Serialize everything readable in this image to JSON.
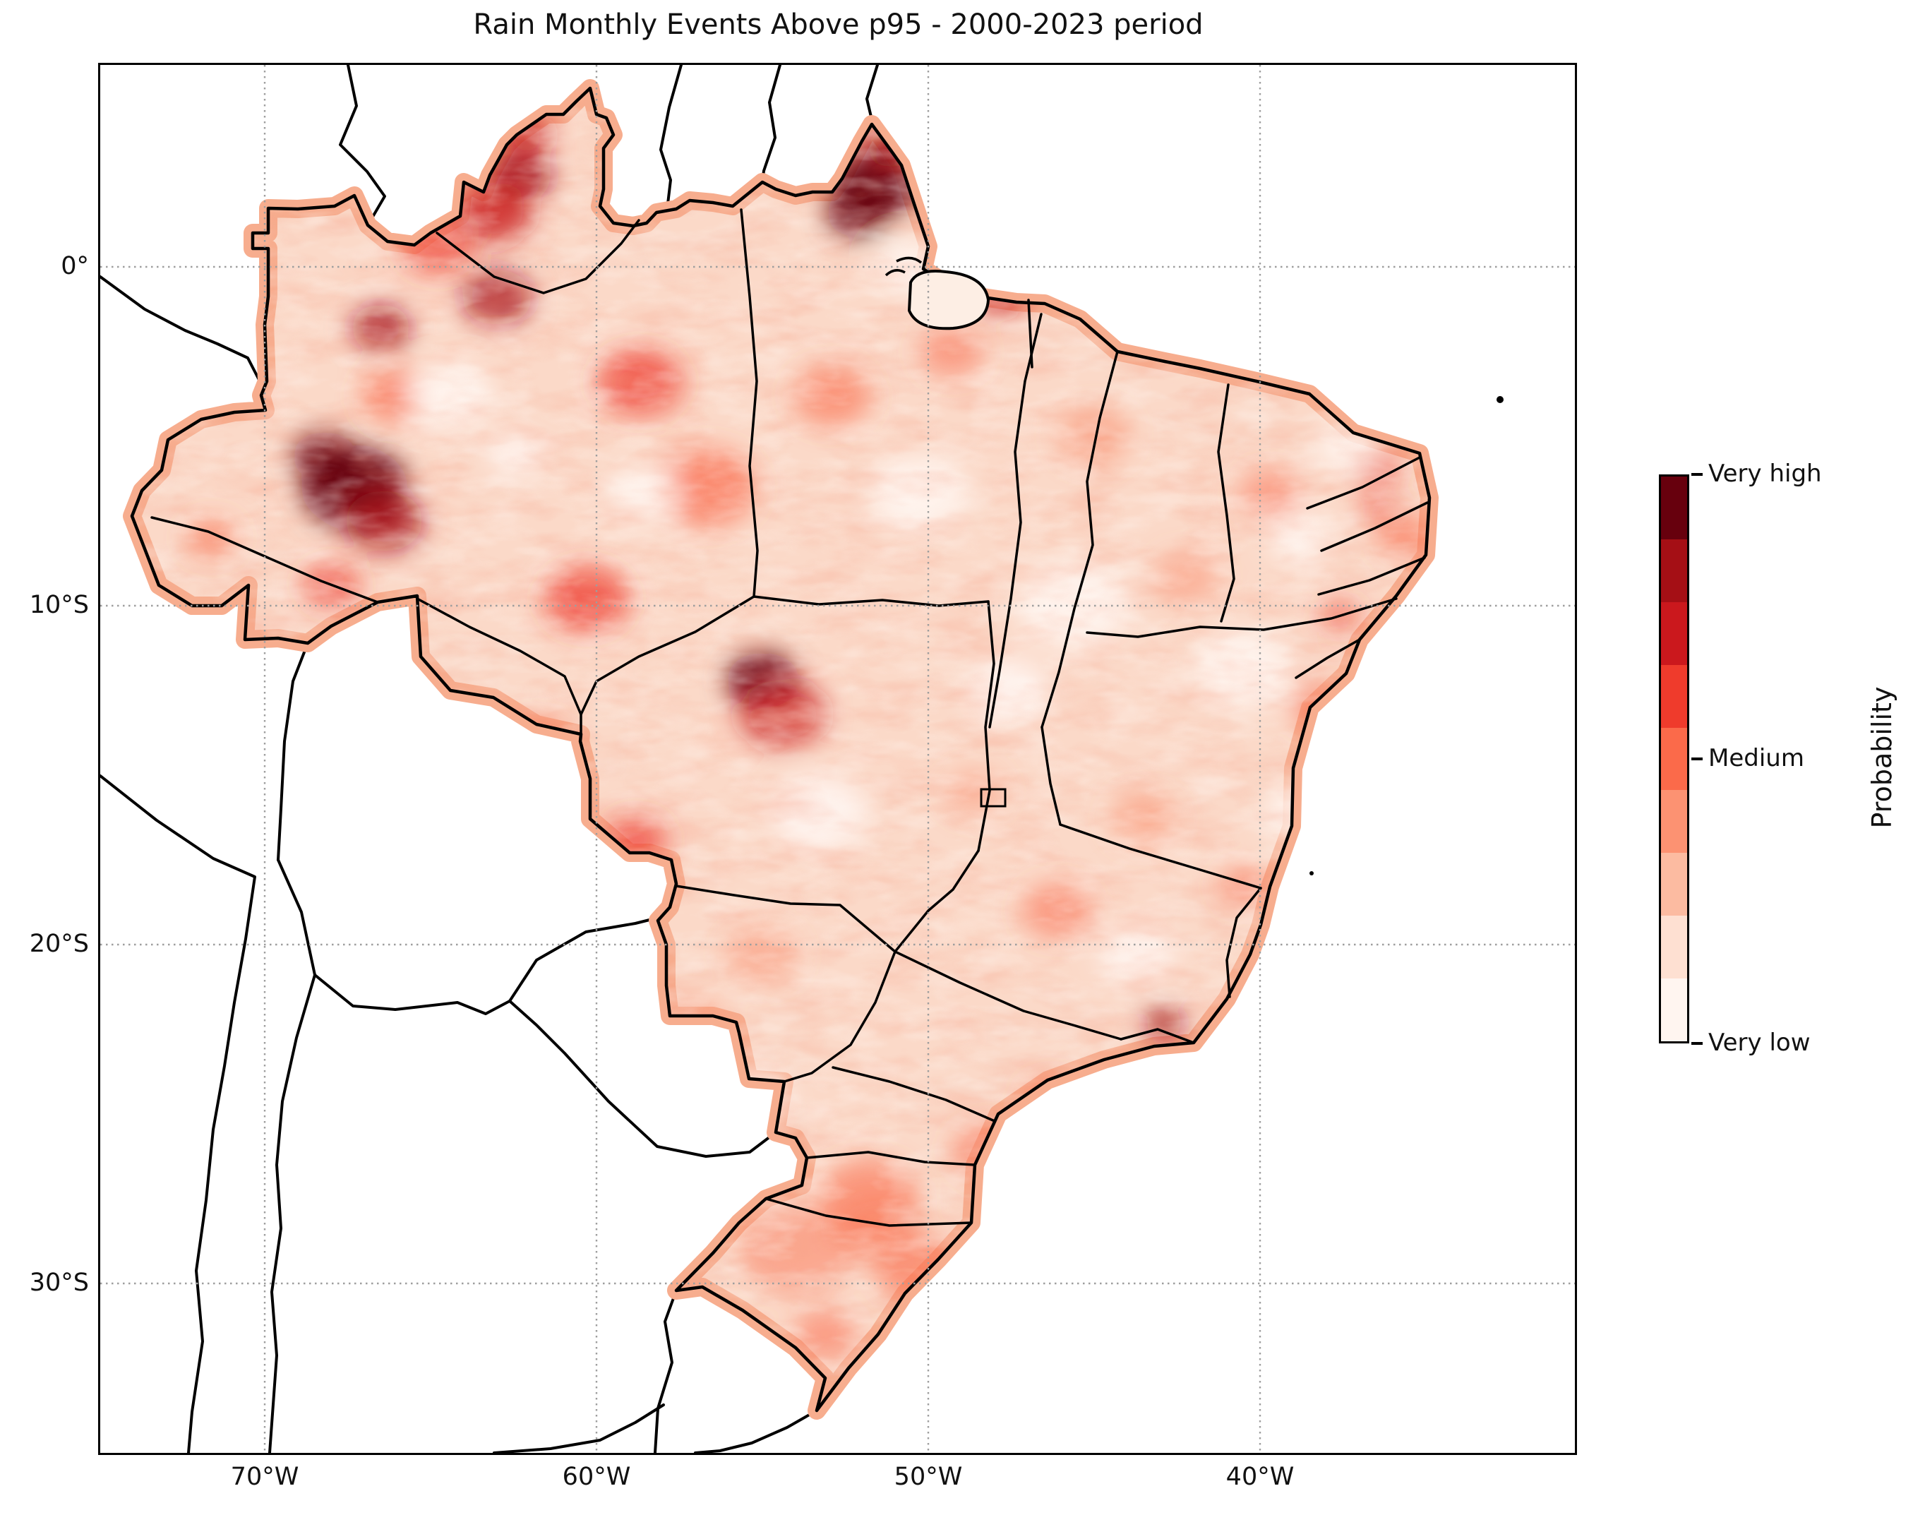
{
  "title": "Rain Monthly Events Above p95 - 2000-2023 period",
  "axes": {
    "x_ticks": [
      {
        "label": "70°W",
        "lon": -70
      },
      {
        "label": "60°W",
        "lon": -60
      },
      {
        "label": "50°W",
        "lon": -50
      },
      {
        "label": "40°W",
        "lon": -40
      }
    ],
    "y_ticks": [
      {
        "label": "0°",
        "lat": 0
      },
      {
        "label": "10°S",
        "lat": -10
      },
      {
        "label": "20°S",
        "lat": -20
      },
      {
        "label": "30°S",
        "lat": -30
      }
    ]
  },
  "colorbar": {
    "title": "Probability",
    "ticks": [
      {
        "label": "Very high",
        "pos": 1.0
      },
      {
        "label": "Medium",
        "pos": 0.5
      },
      {
        "label": "Very low",
        "pos": 0.0
      }
    ],
    "palette_low_to_high": [
      "#fff5f0",
      "#fee0d2",
      "#fcbba1",
      "#fc9272",
      "#fb6a4a",
      "#ef3b2c",
      "#cb181d",
      "#a50f15",
      "#67000d"
    ]
  },
  "chart_data": {
    "type": "heatmap",
    "title": "Rain Monthly Events Above p95 - 2000-2023 period",
    "region": "Brazil",
    "legend_label": "Probability",
    "legend_levels": [
      "Very low",
      "Medium",
      "Very high"
    ],
    "gridlines": {
      "lons": [
        -70,
        -60,
        -50,
        -40
      ],
      "lats": [
        0,
        -10,
        -20,
        -30
      ]
    },
    "base_level": 2,
    "hotspots": [
      {
        "lon": -67.3,
        "lat": -6.5,
        "r": 75,
        "level": 8,
        "o": 0.95
      },
      {
        "lon": -68.2,
        "lat": -5.6,
        "r": 45,
        "level": 8,
        "o": 0.9
      },
      {
        "lon": -66.4,
        "lat": -7.5,
        "r": 55,
        "level": 7,
        "o": 0.85
      },
      {
        "lon": -66.5,
        "lat": -1.8,
        "r": 42,
        "level": 7,
        "o": 0.8
      },
      {
        "lon": -62.3,
        "lat": 2.7,
        "r": 45,
        "level": 7,
        "o": 0.9
      },
      {
        "lon": -63.1,
        "lat": 1.6,
        "r": 55,
        "level": 6,
        "o": 0.8
      },
      {
        "lon": -62.1,
        "lat": 3.9,
        "r": 35,
        "level": 6,
        "o": 0.8
      },
      {
        "lon": -63.0,
        "lat": -0.9,
        "r": 50,
        "level": 7,
        "o": 0.8
      },
      {
        "lon": -51.6,
        "lat": 2.4,
        "r": 60,
        "level": 8,
        "o": 0.95
      },
      {
        "lon": -52.1,
        "lat": 1.6,
        "r": 45,
        "level": 8,
        "o": 0.9
      },
      {
        "lon": -51.1,
        "lat": 3.5,
        "r": 35,
        "level": 7,
        "o": 0.9
      },
      {
        "lon": -55.0,
        "lat": -12.2,
        "r": 50,
        "level": 8,
        "o": 0.95
      },
      {
        "lon": -54.4,
        "lat": -13.2,
        "r": 62,
        "level": 6,
        "o": 0.7
      },
      {
        "lon": -47.8,
        "lat": -0.8,
        "r": 36,
        "level": 6,
        "o": 0.8
      },
      {
        "lon": -42.9,
        "lat": -22.3,
        "r": 28,
        "level": 7,
        "o": 0.85
      },
      {
        "lon": -58.7,
        "lat": -3.4,
        "r": 60,
        "level": 5,
        "o": 0.75
      },
      {
        "lon": -56.7,
        "lat": -6.5,
        "r": 70,
        "level": 4,
        "o": 0.7
      },
      {
        "lon": -60.3,
        "lat": -9.8,
        "r": 60,
        "level": 5,
        "o": 0.75
      },
      {
        "lon": -64.8,
        "lat": 0.6,
        "r": 50,
        "level": 5,
        "o": 0.7
      },
      {
        "lon": -66.1,
        "lat": -3.8,
        "r": 45,
        "level": 4,
        "o": 0.7
      },
      {
        "lon": -58.8,
        "lat": -16.9,
        "r": 45,
        "level": 5,
        "o": 0.7
      },
      {
        "lon": -61.8,
        "lat": -14.2,
        "r": 50,
        "level": 4,
        "o": 0.65
      },
      {
        "lon": -52.9,
        "lat": -3.8,
        "r": 55,
        "level": 4,
        "o": 0.6
      },
      {
        "lon": -49.3,
        "lat": -2.5,
        "r": 45,
        "level": 4,
        "o": 0.55
      },
      {
        "lon": -45.0,
        "lat": -5.0,
        "r": 50,
        "level": 3,
        "o": 0.6
      },
      {
        "lon": -39.7,
        "lat": -6.7,
        "r": 45,
        "level": 4,
        "o": 0.5
      },
      {
        "lon": -36.5,
        "lat": -5.9,
        "r": 35,
        "level": 5,
        "o": 0.6
      },
      {
        "lon": -36.4,
        "lat": -7.1,
        "r": 30,
        "level": 5,
        "o": 0.5
      },
      {
        "lon": -35.6,
        "lat": -8.0,
        "r": 40,
        "level": 4,
        "o": 0.6
      },
      {
        "lon": -38.2,
        "lat": -13.0,
        "r": 40,
        "level": 4,
        "o": 0.6
      },
      {
        "lon": -37.6,
        "lat": -10.3,
        "r": 30,
        "level": 5,
        "o": 0.55
      },
      {
        "lon": -46.1,
        "lat": -19.0,
        "r": 50,
        "level": 4,
        "o": 0.55
      },
      {
        "lon": -43.5,
        "lat": -16.3,
        "r": 45,
        "level": 3,
        "o": 0.6
      },
      {
        "lon": -51.8,
        "lat": -27.5,
        "r": 70,
        "level": 4,
        "o": 0.6
      },
      {
        "lon": -50.3,
        "lat": -29.6,
        "r": 60,
        "level": 4,
        "o": 0.6
      },
      {
        "lon": -53.1,
        "lat": -31.5,
        "r": 45,
        "level": 4,
        "o": 0.55
      },
      {
        "lon": -48.2,
        "lat": -26.1,
        "r": 50,
        "level": 4,
        "o": 0.55
      },
      {
        "lon": -54.0,
        "lat": -29.0,
        "r": 80,
        "level": 4,
        "o": 0.45
      },
      {
        "lon": -51.5,
        "lat": -28.5,
        "r": 60,
        "level": 4,
        "o": 0.45
      },
      {
        "lon": -46.3,
        "lat": -24.6,
        "r": 40,
        "level": 4,
        "o": 0.5
      },
      {
        "lon": -68.0,
        "lat": -9.4,
        "r": 40,
        "level": 5,
        "o": 0.7
      },
      {
        "lon": -71.6,
        "lat": -8.0,
        "r": 35,
        "level": 4,
        "o": 0.6
      },
      {
        "lon": -42.2,
        "lat": -9.2,
        "r": 45,
        "level": 3,
        "o": 0.55
      },
      {
        "lon": -40.5,
        "lat": -18.3,
        "r": 35,
        "level": 4,
        "o": 0.55
      },
      {
        "lon": -48.6,
        "lat": -15.5,
        "r": 40,
        "level": 3,
        "o": 0.5
      },
      {
        "lon": -55.0,
        "lat": -20.3,
        "r": 50,
        "level": 3,
        "o": 0.5
      },
      {
        "lon": -57.1,
        "lat": -22.3,
        "r": 45,
        "level": 3,
        "o": 0.5
      },
      {
        "lon": -64.4,
        "lat": -3.8,
        "r": 60,
        "level": 0,
        "o": 0.9
      },
      {
        "lon": -58.6,
        "lat": -6.7,
        "r": 50,
        "level": 0,
        "o": 0.9
      },
      {
        "lon": -50.3,
        "lat": -6.7,
        "r": 70,
        "level": 0,
        "o": 0.9
      },
      {
        "lon": -45.6,
        "lat": -10.0,
        "r": 80,
        "level": 0,
        "o": 0.9
      },
      {
        "lon": -40.5,
        "lat": -11.9,
        "r": 70,
        "level": 0,
        "o": 0.9
      },
      {
        "lon": -38.6,
        "lat": -16.1,
        "r": 60,
        "level": 0,
        "o": 0.9
      },
      {
        "lon": -47.6,
        "lat": -12.5,
        "r": 60,
        "level": 0,
        "o": 0.85
      },
      {
        "lon": -53.3,
        "lat": -16.1,
        "r": 70,
        "level": 0,
        "o": 0.85
      },
      {
        "lon": -55.4,
        "lat": -24.6,
        "r": 60,
        "level": 0,
        "o": 0.8
      },
      {
        "lon": -43.7,
        "lat": -20.3,
        "r": 55,
        "level": 0,
        "o": 0.8
      },
      {
        "lon": -37.4,
        "lat": -5.3,
        "r": 45,
        "level": 0,
        "o": 0.9
      },
      {
        "lon": -50.5,
        "lat": 0.0,
        "r": 50,
        "level": 0,
        "o": 0.9
      },
      {
        "lon": -62.4,
        "lat": -5.5,
        "r": 40,
        "level": 0,
        "o": 0.85
      },
      {
        "lon": -38.8,
        "lat": -8.0,
        "r": 45,
        "level": 0,
        "o": 0.9
      }
    ]
  }
}
